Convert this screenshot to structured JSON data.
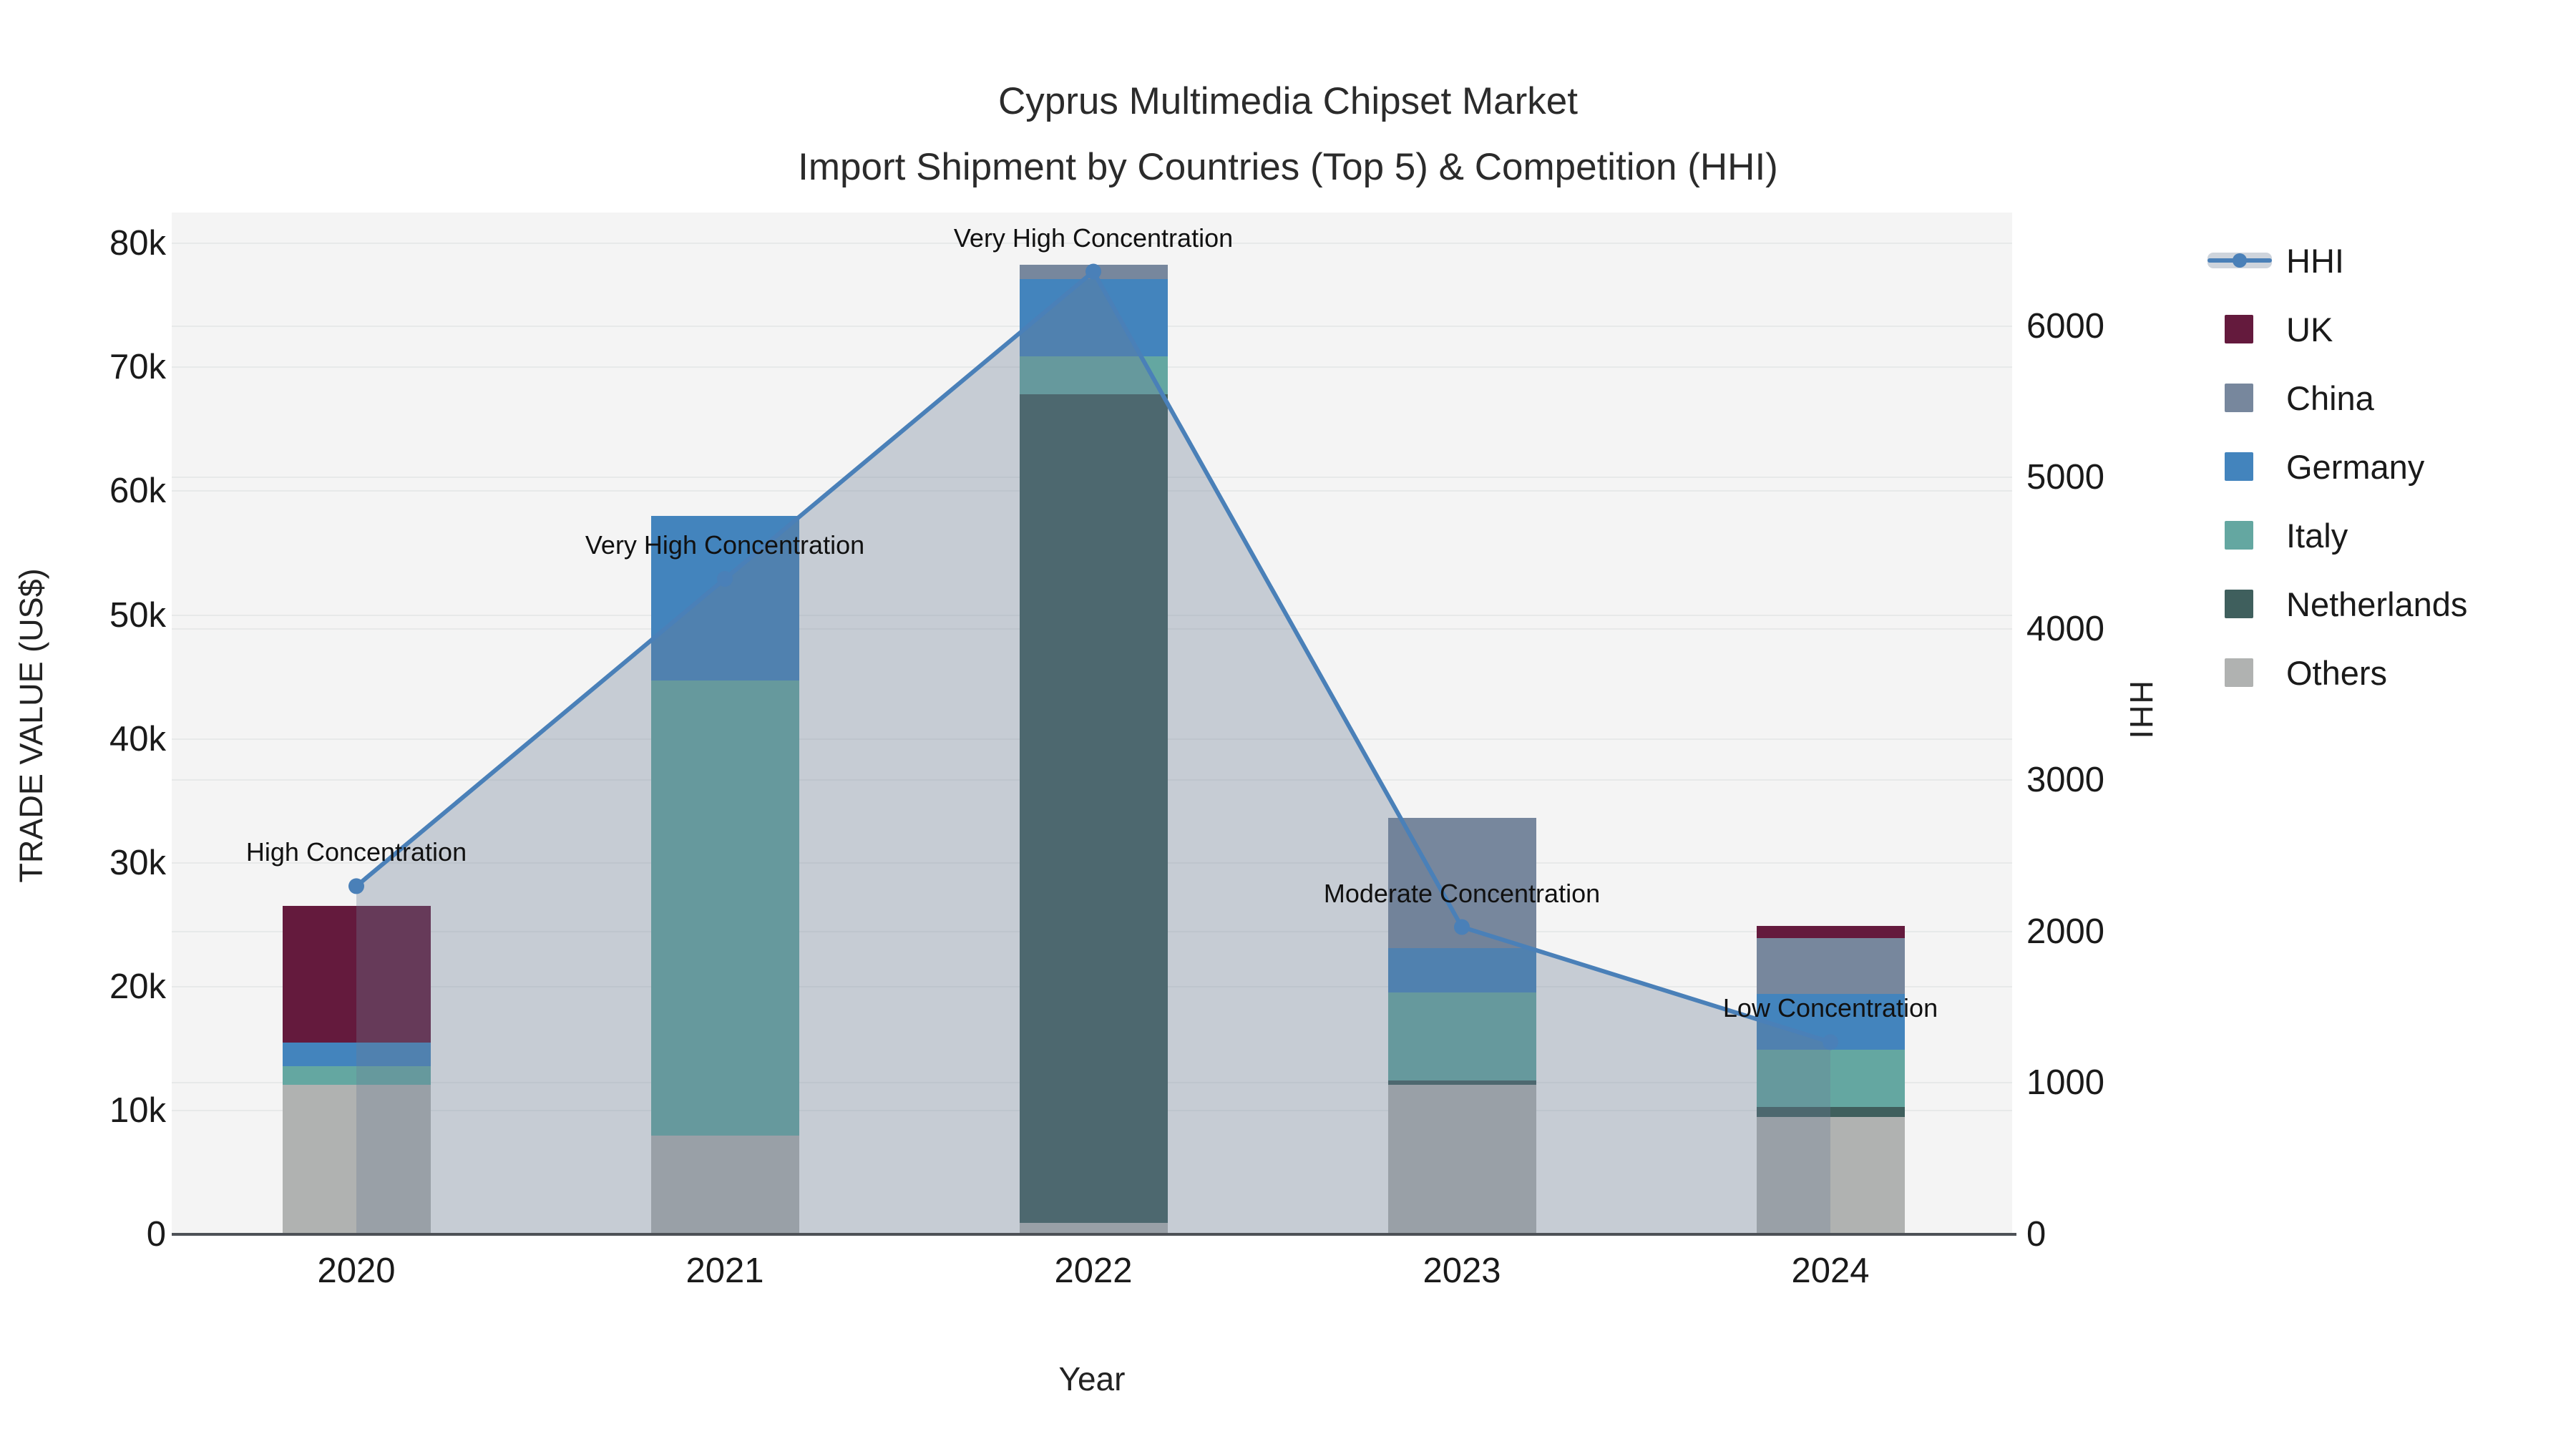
{
  "title": {
    "line1": "Cyprus Multimedia Chipset Market",
    "line2": "Import Shipment by Countries (Top 5) & Competition (HHI)"
  },
  "axes": {
    "x": {
      "label": "Year",
      "tick_labels": [
        "2020",
        "2021",
        "2022",
        "2023",
        "2024"
      ]
    },
    "y_left": {
      "label": "TRADE VALUE (US$)",
      "tick_values": [
        0,
        10000,
        20000,
        30000,
        40000,
        50000,
        60000,
        70000,
        80000
      ],
      "tick_labels": [
        "0",
        "10k",
        "20k",
        "30k",
        "40k",
        "50k",
        "60k",
        "70k",
        "80k"
      ]
    },
    "y_right": {
      "label": "HHI",
      "tick_values": [
        0,
        1000,
        2000,
        3000,
        4000,
        5000,
        6000
      ],
      "tick_labels": [
        "0",
        "1000",
        "2000",
        "3000",
        "4000",
        "5000",
        "6000"
      ]
    }
  },
  "legend": [
    {
      "label": "HHI",
      "swatch": "line"
    },
    {
      "label": "UK",
      "swatch": "uk"
    },
    {
      "label": "China",
      "swatch": "china"
    },
    {
      "label": "Germany",
      "swatch": "germany"
    },
    {
      "label": "Italy",
      "swatch": "italy"
    },
    {
      "label": "Netherlands",
      "swatch": "netherlands"
    },
    {
      "label": "Others",
      "swatch": "others"
    }
  ],
  "colors": {
    "uk": "#641a3d",
    "china": "#77879d",
    "germany": "#4384bd",
    "italy": "#64a7a1",
    "netherlands": "#3f5f5d",
    "others": "#b0b2b1",
    "hhi_line": "#4a80b8",
    "hhi_fill": "rgba(105,125,150,0.33)",
    "plot_bg": "#f4f4f4",
    "grid": "#e7e9e9",
    "axis_line": "#4d5156",
    "text": "#1f1f1f"
  },
  "chart_data": {
    "type": "bar+line dual-axis (stacked bars left axis, HHI line right axis)",
    "categories": [
      "2020",
      "2021",
      "2022",
      "2023",
      "2024"
    ],
    "bar_series_bottom_to_top": [
      {
        "name": "Others",
        "color_key": "others",
        "values": [
          12100,
          8000,
          900,
          12100,
          9500
        ]
      },
      {
        "name": "Netherlands",
        "color_key": "netherlands",
        "values": [
          0,
          0,
          66900,
          300,
          800
        ]
      },
      {
        "name": "Italy",
        "color_key": "italy",
        "values": [
          1500,
          36700,
          3100,
          7100,
          4600
        ]
      },
      {
        "name": "Germany",
        "color_key": "germany",
        "values": [
          1900,
          13300,
          6200,
          3600,
          4500
        ]
      },
      {
        "name": "China",
        "color_key": "china",
        "values": [
          0,
          0,
          1200,
          10500,
          4500
        ]
      },
      {
        "name": "UK",
        "color_key": "uk",
        "values": [
          11000,
          0,
          0,
          0,
          1000
        ]
      }
    ],
    "bar_totals": [
      26500,
      58000,
      78300,
      33600,
      24900
    ],
    "line_series": {
      "name": "HHI",
      "axis": "right",
      "values": [
        2300,
        4330,
        6360,
        2030,
        1270
      ]
    },
    "annotations": [
      "High Concentration",
      "Very High Concentration",
      "Very High Concentration",
      "Moderate Concentration",
      "Low Concentration"
    ],
    "title": "Cyprus Multimedia Chipset Market — Import Shipment by Countries (Top 5) & Competition (HHI)",
    "xlabel": "Year",
    "ylabel_left": "TRADE VALUE (US$)",
    "ylabel_right": "HHI",
    "y_left_range": [
      0,
      82500
    ],
    "y_right_range": [
      0,
      6750
    ],
    "grid": true,
    "legend_position": "right"
  }
}
